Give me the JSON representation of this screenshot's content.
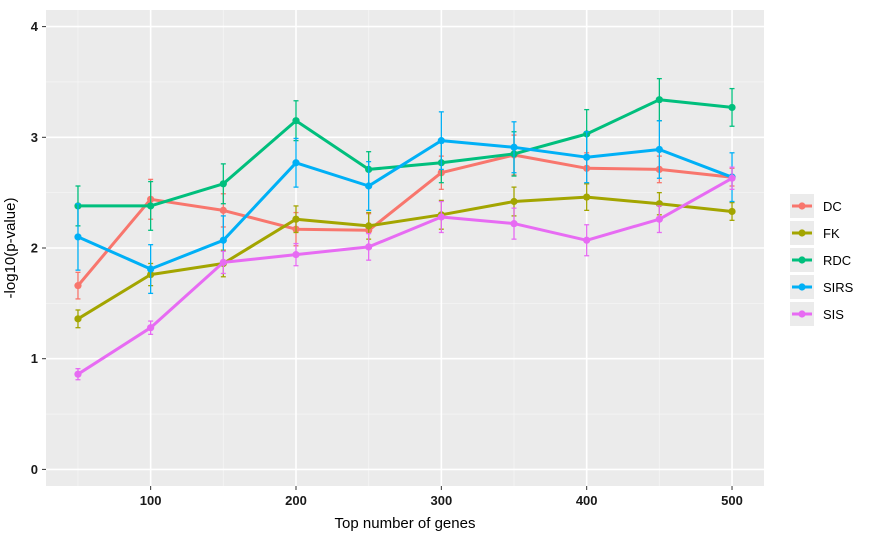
{
  "chart_data": {
    "type": "line",
    "xlabel": "Top number of genes",
    "ylabel": "-log10(p-value)",
    "xlim": [
      28,
      522
    ],
    "ylim": [
      -0.15,
      4.15
    ],
    "x_ticks": [
      100,
      200,
      300,
      400,
      500
    ],
    "y_ticks": [
      0,
      1,
      2,
      3,
      4
    ],
    "grid": true,
    "legend_position": "right",
    "x": [
      50,
      100,
      150,
      200,
      250,
      300,
      350,
      400,
      450,
      500
    ],
    "series": [
      {
        "name": "DC",
        "color": "#F8766D",
        "values": [
          1.66,
          2.44,
          2.34,
          2.17,
          2.16,
          2.68,
          2.84,
          2.72,
          2.71,
          2.64
        ],
        "error": [
          0.12,
          0.18,
          0.15,
          0.15,
          0.15,
          0.15,
          0.18,
          0.14,
          0.12,
          0.08
        ]
      },
      {
        "name": "FK",
        "color": "#A3A500",
        "values": [
          1.36,
          1.76,
          1.86,
          2.26,
          2.2,
          2.3,
          2.42,
          2.46,
          2.4,
          2.33
        ],
        "error": [
          0.08,
          0.1,
          0.12,
          0.12,
          0.12,
          0.13,
          0.13,
          0.12,
          0.1,
          0.08
        ]
      },
      {
        "name": "RDC",
        "color": "#00BF7D",
        "values": [
          2.38,
          2.38,
          2.58,
          3.15,
          2.71,
          2.77,
          2.85,
          3.03,
          3.34,
          3.27
        ],
        "error": [
          0.18,
          0.22,
          0.18,
          0.18,
          0.16,
          0.18,
          0.2,
          0.22,
          0.19,
          0.17
        ]
      },
      {
        "name": "SIRS",
        "color": "#00B0F6",
        "values": [
          2.1,
          1.81,
          2.07,
          2.77,
          2.56,
          2.97,
          2.91,
          2.82,
          2.89,
          2.64
        ],
        "error": [
          0.3,
          0.22,
          0.22,
          0.22,
          0.22,
          0.26,
          0.23,
          0.23,
          0.26,
          0.22
        ]
      },
      {
        "name": "SIS",
        "color": "#E76BF3",
        "values": [
          0.86,
          1.28,
          1.87,
          1.94,
          2.01,
          2.28,
          2.22,
          2.07,
          2.26,
          2.63
        ],
        "error": [
          0.05,
          0.06,
          0.1,
          0.1,
          0.12,
          0.14,
          0.14,
          0.14,
          0.12,
          0.1
        ]
      }
    ]
  }
}
